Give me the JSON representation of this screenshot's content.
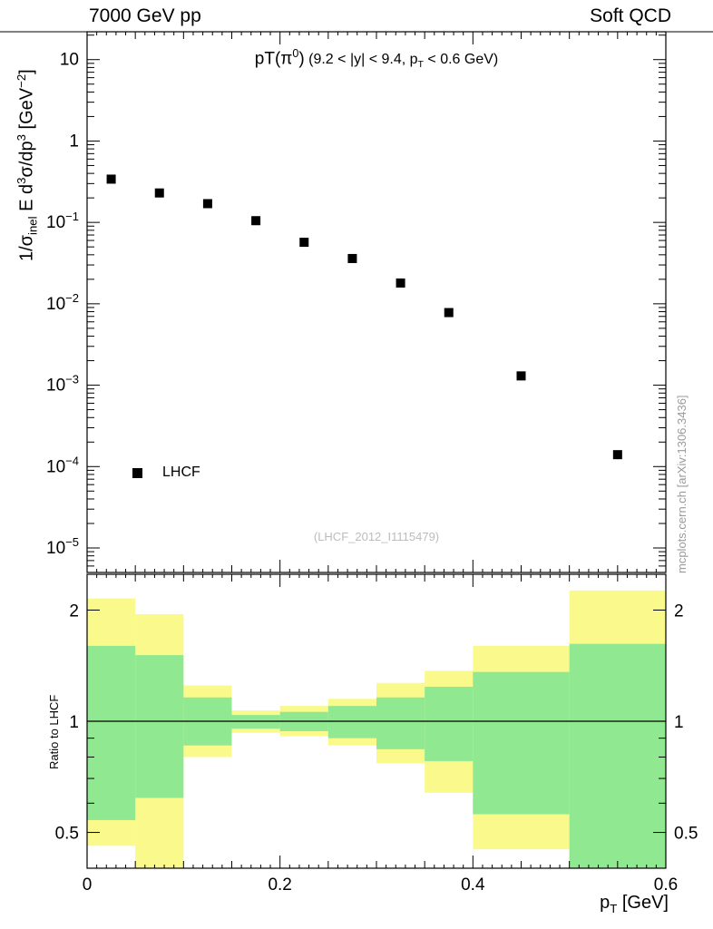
{
  "header": {
    "left": "7000 GeV pp",
    "right": "Soft QCD"
  },
  "side_note": "mcplots.cern.ch [arXiv:1306.3436]",
  "main_plot": {
    "title": {
      "head": "pT(π",
      "head_sup": "0",
      "head_close": ")",
      "cond_pre": " (9.2 < |y| < 9.4, p",
      "cond_sub": "T",
      "cond_post": " < 0.6 GeV)"
    },
    "ylabel": {
      "p1": "1/σ",
      "p1_sub": "inel",
      "p2": " E d",
      "p2_sup": "3",
      "p3": "σ/dp",
      "p3_sup": "3",
      "p4": " [GeV",
      "p4_sup": "−2",
      "p5": "]"
    },
    "legend": {
      "label": "LHCF",
      "marker": "filled-square"
    },
    "watermark": "(LHCF_2012_I1115479)"
  },
  "ratio_plot": {
    "ylabel": "Ratio to LHCF"
  },
  "xaxis": {
    "title_pre": "p",
    "title_sub": "T",
    "title_post": " [GeV]"
  },
  "chart_data": {
    "type": "scatter",
    "title": "pT(pi0) (9.2 < |y| < 9.4, pT < 0.6 GeV)",
    "xlabel": "p_T [GeV]",
    "ylabel": "1/sigma_inel E d^3sigma/dp^3 [GeV^-2]",
    "xlim": [
      0,
      0.6
    ],
    "ylog": true,
    "ylim": [
      5e-06,
      22
    ],
    "yticks_exp": [
      -5,
      -4,
      -3,
      -2,
      -1,
      0,
      1
    ],
    "xticks": [
      {
        "v": 0,
        "label": "0"
      },
      {
        "v": 0.2,
        "label": "0.2"
      },
      {
        "v": 0.4,
        "label": "0.4"
      },
      {
        "v": 0.6,
        "label": "0.6"
      }
    ],
    "series": [
      {
        "name": "LHCF",
        "marker": "filled-square",
        "color": "#000000",
        "x": [
          0.025,
          0.075,
          0.125,
          0.175,
          0.225,
          0.275,
          0.325,
          0.375,
          0.45,
          0.55
        ],
        "y": [
          0.34,
          0.23,
          0.17,
          0.105,
          0.057,
          0.036,
          0.018,
          0.0078,
          0.0013,
          0.00014
        ]
      }
    ],
    "ratio": {
      "ylabel": "Ratio to LHCF",
      "ylog": true,
      "ylim": [
        0.4,
        2.5
      ],
      "yticks": [
        0.5,
        1,
        2
      ],
      "yticks_minor": [
        0.4,
        0.6,
        0.7,
        0.8,
        0.9
      ],
      "colors": {
        "yellow": "#fafa8c",
        "green": "#90e890"
      },
      "bins": [
        {
          "xlo": 0.0,
          "xhi": 0.05,
          "yellow": [
            0.46,
            2.15
          ],
          "green": [
            0.54,
            1.6
          ]
        },
        {
          "xlo": 0.05,
          "xhi": 0.1,
          "yellow": [
            0.38,
            1.95
          ],
          "green": [
            0.62,
            1.51
          ]
        },
        {
          "xlo": 0.1,
          "xhi": 0.15,
          "yellow": [
            0.8,
            1.25
          ],
          "green": [
            0.86,
            1.16
          ]
        },
        {
          "xlo": 0.15,
          "xhi": 0.2,
          "yellow": [
            0.93,
            1.07
          ],
          "green": [
            0.955,
            1.04
          ]
        },
        {
          "xlo": 0.2,
          "xhi": 0.25,
          "yellow": [
            0.91,
            1.1
          ],
          "green": [
            0.94,
            1.06
          ]
        },
        {
          "xlo": 0.25,
          "xhi": 0.3,
          "yellow": [
            0.86,
            1.15
          ],
          "green": [
            0.9,
            1.1
          ]
        },
        {
          "xlo": 0.3,
          "xhi": 0.35,
          "yellow": [
            0.77,
            1.27
          ],
          "green": [
            0.84,
            1.16
          ]
        },
        {
          "xlo": 0.35,
          "xhi": 0.4,
          "yellow": [
            0.64,
            1.37
          ],
          "green": [
            0.78,
            1.24
          ]
        },
        {
          "xlo": 0.4,
          "xhi": 0.5,
          "yellow": [
            0.45,
            1.6
          ],
          "green": [
            0.56,
            1.36
          ]
        },
        {
          "xlo": 0.5,
          "xhi": 0.6,
          "yellow": [
            0.4,
            2.26
          ],
          "green": [
            0.4,
            1.62
          ]
        }
      ]
    }
  }
}
